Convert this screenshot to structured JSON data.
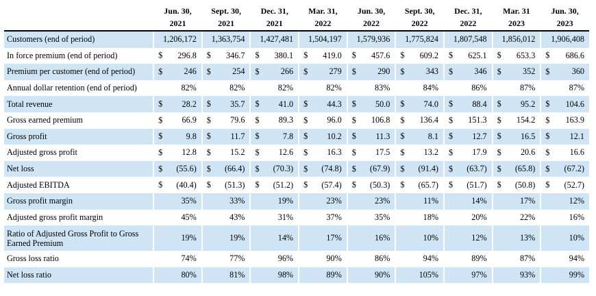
{
  "header": {
    "periods_line1": [
      "Jun. 30,",
      "Sept. 30,",
      "Dec. 31,",
      "Mar. 31,",
      "Jun. 30,",
      "Sept. 30,",
      "Dec. 31,",
      "Mar. 31",
      "Jun. 30,"
    ],
    "periods_line2": [
      "2021",
      "2021",
      "2021",
      "2022",
      "2022",
      "2022",
      "2022",
      "2023",
      "2023"
    ]
  },
  "rows": [
    {
      "label": "Customers (end of period)",
      "cur": false,
      "values": [
        "1,206,172",
        "1,363,754",
        "1,427,481",
        "1,504,197",
        "1,579,936",
        "1,775,824",
        "1,807,548",
        "1,856,012",
        "1,906,408"
      ]
    },
    {
      "label": "In force premium (end of period)",
      "cur": true,
      "values": [
        "296.8",
        "346.7",
        "380.1",
        "419.0",
        "457.6",
        "609.2",
        "625.1",
        "653.3",
        "686.6"
      ]
    },
    {
      "label": "Premium per customer (end of period)",
      "cur": true,
      "values": [
        "246",
        "254",
        "266",
        "279",
        "290",
        "343",
        "346",
        "352",
        "360"
      ]
    },
    {
      "label": "Annual dollar retention (end of period)",
      "cur": false,
      "values": [
        "82%",
        "82%",
        "82%",
        "82%",
        "83%",
        "84%",
        "86%",
        "87%",
        "87%"
      ]
    },
    {
      "label": "Total revenue",
      "cur": true,
      "values": [
        "28.2",
        "35.7",
        "41.0",
        "44.3",
        "50.0",
        "74.0",
        "88.4",
        "95.2",
        "104.6"
      ]
    },
    {
      "label": "Gross earned premium",
      "cur": true,
      "values": [
        "66.9",
        "79.6",
        "89.3",
        "96.0",
        "106.8",
        "136.4",
        "151.3",
        "154.2",
        "163.9"
      ]
    },
    {
      "label": "Gross profit",
      "cur": true,
      "values": [
        "9.8",
        "11.7",
        "7.8",
        "10.2",
        "11.3",
        "8.1",
        "12.7",
        "16.5",
        "12.1"
      ]
    },
    {
      "label": "Adjusted gross profit",
      "cur": true,
      "values": [
        "12.8",
        "15.2",
        "12.6",
        "16.3",
        "17.5",
        "13.2",
        "17.9",
        "20.6",
        "16.6"
      ]
    },
    {
      "label": "Net loss",
      "cur": true,
      "values": [
        "(55.6)",
        "(66.4)",
        "(70.3)",
        "(74.8)",
        "(67.9)",
        "(91.4)",
        "(63.7)",
        "(65.8)",
        "(67.2)"
      ]
    },
    {
      "label": "Adjusted EBITDA",
      "cur": true,
      "values": [
        "(40.4)",
        "(51.3)",
        "(51.2)",
        "(57.4)",
        "(50.3)",
        "(65.7)",
        "(51.7)",
        "(50.8)",
        "(52.7)"
      ]
    },
    {
      "label": "Gross profit margin",
      "cur": false,
      "values": [
        "35%",
        "33%",
        "19%",
        "23%",
        "23%",
        "11%",
        "14%",
        "17%",
        "12%"
      ]
    },
    {
      "label": "Adjusted gross profit margin",
      "cur": false,
      "values": [
        "45%",
        "43%",
        "31%",
        "37%",
        "35%",
        "18%",
        "20%",
        "22%",
        "16%"
      ]
    },
    {
      "label": "Ratio of Adjusted Gross Profit to Gross Earned Premium",
      "cur": false,
      "tall": true,
      "values": [
        "19%",
        "19%",
        "14%",
        "17%",
        "16%",
        "10%",
        "12%",
        "13%",
        "10%"
      ]
    },
    {
      "label": "Gross loss ratio",
      "cur": false,
      "values": [
        "74%",
        "77%",
        "96%",
        "90%",
        "86%",
        "94%",
        "89%",
        "87%",
        "94%"
      ]
    },
    {
      "label": "Net loss ratio",
      "cur": false,
      "values": [
        "80%",
        "81%",
        "98%",
        "89%",
        "90%",
        "105%",
        "97%",
        "93%",
        "99%"
      ]
    }
  ],
  "currency_symbol": "$",
  "colors": {
    "shade": "#cfe5f5"
  }
}
